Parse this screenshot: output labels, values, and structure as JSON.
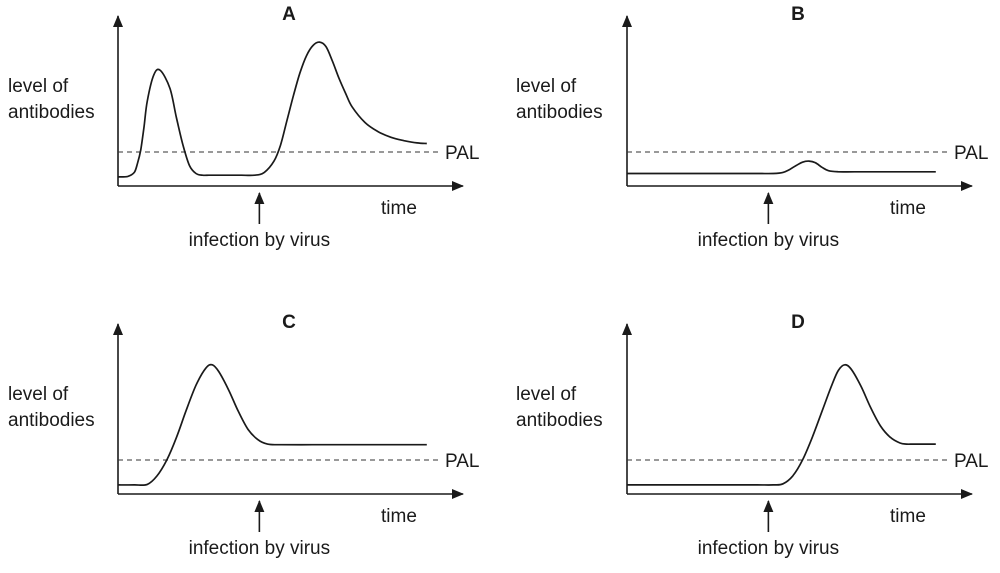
{
  "chart_data": [
    {
      "type": "line",
      "title": "A",
      "ylabel_lines": [
        "level of",
        "antibodies"
      ],
      "xlabel": "time",
      "reference_label": "PAL",
      "event_label": "infection by virus",
      "series": [
        {
          "x": [
            0,
            3,
            5,
            6,
            7,
            8,
            9,
            11,
            13,
            16,
            18,
            20,
            22,
            24,
            26,
            28,
            30,
            32,
            35,
            38,
            42,
            45,
            48,
            50,
            52,
            54,
            56,
            58,
            60,
            62,
            64,
            66,
            68,
            70,
            72,
            76,
            80,
            84,
            88,
            92,
            95
          ],
          "y": [
            0.8,
            0.85,
            1.2,
            2.0,
            3.2,
            5.2,
            7.5,
            9.8,
            10.2,
            8.6,
            6.0,
            3.6,
            1.8,
            1.1,
            0.95,
            0.95,
            0.95,
            0.95,
            0.95,
            0.95,
            0.95,
            1.2,
            2.2,
            3.6,
            5.8,
            8.0,
            10.0,
            11.5,
            12.4,
            12.7,
            12.3,
            11.0,
            9.5,
            8.2,
            7.0,
            5.6,
            4.8,
            4.3,
            4.0,
            3.8,
            3.75
          ]
        }
      ]
    },
    {
      "type": "line",
      "title": "B",
      "ylabel_lines": [
        "level of",
        "antibodies"
      ],
      "xlabel": "time",
      "reference_label": "PAL",
      "event_label": "infection by virus",
      "series": [
        {
          "x": [
            0,
            10,
            20,
            30,
            40,
            45,
            48,
            50,
            52,
            54,
            56,
            58,
            60,
            62,
            65,
            70,
            80,
            90,
            95
          ],
          "y": [
            1.1,
            1.1,
            1.1,
            1.1,
            1.1,
            1.1,
            1.2,
            1.45,
            1.8,
            2.1,
            2.2,
            2.05,
            1.65,
            1.35,
            1.25,
            1.25,
            1.25,
            1.25,
            1.25
          ]
        }
      ]
    },
    {
      "type": "line",
      "title": "C",
      "ylabel_lines": [
        "level of",
        "antibodies"
      ],
      "xlabel": "time",
      "reference_label": "PAL",
      "event_label": "infection by virus",
      "series": [
        {
          "x": [
            0,
            5,
            9,
            12,
            15,
            18,
            21,
            24,
            27,
            29,
            31,
            34,
            37,
            40,
            43,
            46,
            50,
            60,
            70,
            80,
            90,
            95
          ],
          "y": [
            0.8,
            0.8,
            0.85,
            1.6,
            3.0,
            5.0,
            7.4,
            9.6,
            11.1,
            11.4,
            10.8,
            9.2,
            7.3,
            5.7,
            4.8,
            4.4,
            4.35,
            4.35,
            4.35,
            4.35,
            4.35,
            4.35
          ]
        }
      ]
    },
    {
      "type": "line",
      "title": "D",
      "ylabel_lines": [
        "level of",
        "antibodies"
      ],
      "xlabel": "time",
      "reference_label": "PAL",
      "event_label": "infection by virus",
      "series": [
        {
          "x": [
            0,
            10,
            20,
            30,
            40,
            45,
            48,
            51,
            54,
            57,
            60,
            63,
            65,
            67,
            69,
            72,
            75,
            78,
            81,
            84,
            86,
            88,
            91,
            95
          ],
          "y": [
            0.8,
            0.8,
            0.8,
            0.8,
            0.8,
            0.8,
            0.9,
            1.6,
            3.0,
            5.0,
            7.3,
            9.6,
            10.9,
            11.4,
            11.0,
            9.5,
            7.6,
            6.0,
            5.0,
            4.5,
            4.4,
            4.4,
            4.4,
            4.4
          ]
        }
      ]
    }
  ]
}
